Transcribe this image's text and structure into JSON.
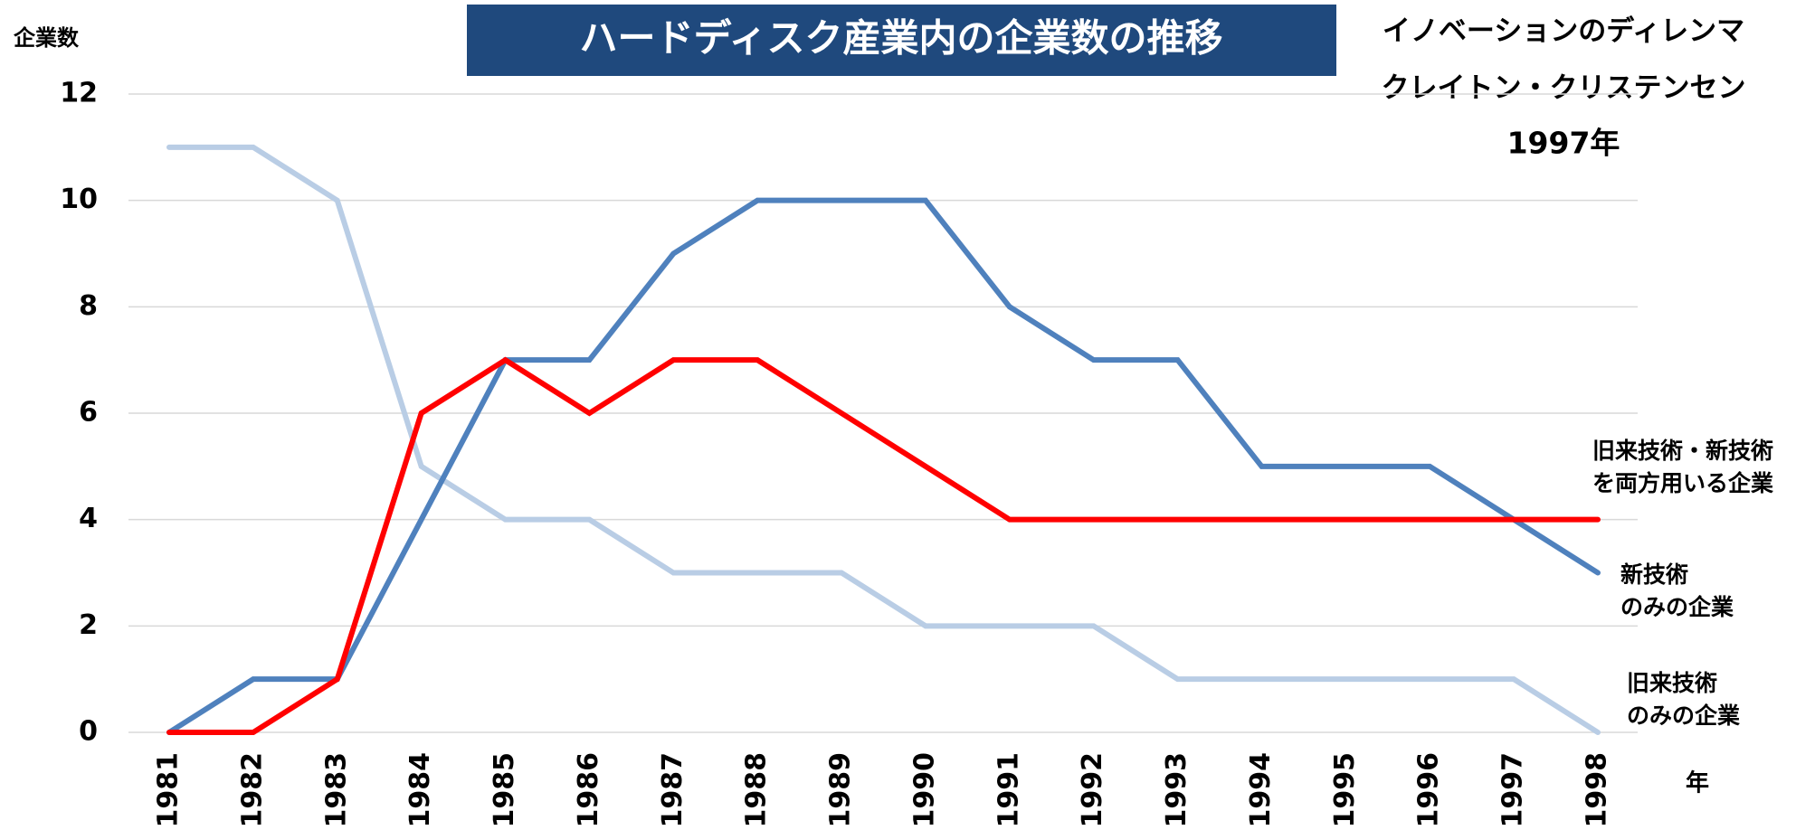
{
  "chart_data": {
    "type": "line",
    "title": "ハードディスク産業内の企業数の推移",
    "annotations": [
      "イノベーションのディレンマ",
      "クレイトン・クリステンセン",
      "1997年"
    ],
    "y_label": "企業数",
    "x_label": "年",
    "categories": [
      "1981",
      "1982",
      "1983",
      "1984",
      "1985",
      "1986",
      "1987",
      "1988",
      "1989",
      "1990",
      "1991",
      "1992",
      "1993",
      "1994",
      "1995",
      "1996",
      "1997",
      "1998"
    ],
    "series": [
      {
        "name": [
          "旧来技術",
          "のみの企業"
        ],
        "color": "#b9cde5",
        "values": [
          11,
          11,
          10,
          5,
          4,
          4,
          3,
          3,
          3,
          2,
          2,
          2,
          1,
          1,
          1,
          1,
          1,
          0
        ]
      },
      {
        "name": [
          "新技術",
          "のみの企業"
        ],
        "color": "#4f81bd",
        "values": [
          0,
          1,
          1,
          4,
          7,
          7,
          9,
          10,
          10,
          10,
          8,
          7,
          7,
          5,
          5,
          5,
          4,
          3
        ]
      },
      {
        "name": [
          "旧来技術・新技術",
          "を両方用いる企業"
        ],
        "color": "#ff0000",
        "values": [
          0,
          0,
          1,
          6,
          7,
          6,
          7,
          7,
          6,
          5,
          4,
          4,
          4,
          4,
          4,
          4,
          4,
          4
        ]
      }
    ],
    "ylim": [
      0,
      12
    ],
    "yticks": [
      0,
      2,
      4,
      6,
      8,
      10,
      12
    ],
    "grid": true
  }
}
